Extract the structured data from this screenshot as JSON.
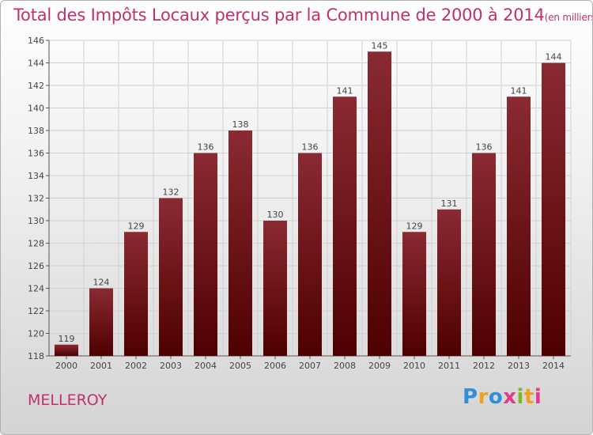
{
  "title": "Total des Impôts Locaux perçus par la Commune de 2000 à 2014",
  "title_unit": "(en milliers d'€)",
  "commune": "MELLEROY",
  "logo": {
    "text": "Proxiti",
    "letters": [
      "P",
      "r",
      "o",
      "x",
      "i",
      "t",
      "i"
    ]
  },
  "colors": {
    "accent": "#c0306a",
    "bar_top": "#8a2a32",
    "bar_bottom": "#4e0000",
    "grid": "#d0d0d0"
  },
  "chart_data": {
    "type": "bar",
    "categories": [
      "2000",
      "2001",
      "2002",
      "2003",
      "2004",
      "2005",
      "2006",
      "2007",
      "2008",
      "2009",
      "2010",
      "2011",
      "2012",
      "2013",
      "2014"
    ],
    "values": [
      119,
      124,
      129,
      132,
      136,
      138,
      130,
      136,
      141,
      145,
      129,
      131,
      136,
      141,
      144
    ],
    "ylim": [
      118,
      146
    ],
    "yticks": [
      118,
      120,
      122,
      124,
      126,
      128,
      130,
      132,
      134,
      136,
      138,
      140,
      142,
      144,
      146
    ],
    "grid": true,
    "data_labels": true
  }
}
